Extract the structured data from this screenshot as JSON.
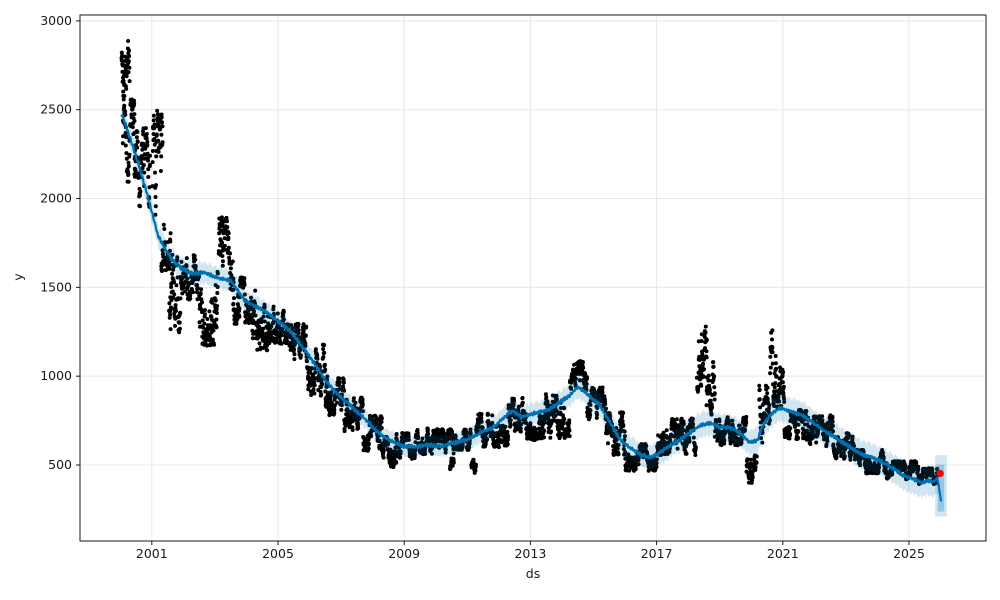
{
  "figure": {
    "background": "#ffffff"
  },
  "chart_data": {
    "type": "scatter",
    "title": "",
    "xlabel": "ds",
    "ylabel": "y",
    "x_tick_labels": [
      "2001",
      "2005",
      "2009",
      "2013",
      "2017",
      "2021",
      "2025"
    ],
    "x_ticks": [
      2001,
      2005,
      2009,
      2013,
      2017,
      2021,
      2025
    ],
    "y_tick_labels": [
      "500",
      "1000",
      "1500",
      "2000",
      "2500",
      "3000"
    ],
    "y_ticks": [
      500,
      1000,
      1500,
      2000,
      2500,
      3000
    ],
    "xlim": [
      1998.72,
      2027.44
    ],
    "ylim": [
      72,
      3033
    ],
    "grid": true,
    "legend": "none",
    "colors": {
      "history_points": "#000000",
      "forecast_line": "#0072B2",
      "uncertainty_band": "#0072B2",
      "band_opacity": 0.18,
      "highlight_point": "#ff0000",
      "grid_line": "#e8e8e8",
      "spine": "#1a1a1a",
      "tick_text": "#1a1a1a"
    },
    "series": {
      "forecast_trend_keypoints": [
        [
          2000.04,
          2480
        ],
        [
          2000.3,
          2350
        ],
        [
          2000.6,
          2180
        ],
        [
          2000.9,
          1995
        ],
        [
          2001.2,
          1790
        ],
        [
          2001.6,
          1665
        ],
        [
          2001.9,
          1612
        ],
        [
          2002.2,
          1578
        ],
        [
          2002.7,
          1582
        ],
        [
          2003.1,
          1552
        ],
        [
          2003.5,
          1540
        ],
        [
          2003.95,
          1425
        ],
        [
          2004.3,
          1392
        ],
        [
          2004.6,
          1365
        ],
        [
          2005.0,
          1308
        ],
        [
          2005.3,
          1270
        ],
        [
          2005.6,
          1205
        ],
        [
          2005.9,
          1135
        ],
        [
          2006.2,
          1060
        ],
        [
          2006.5,
          978
        ],
        [
          2006.8,
          915
        ],
        [
          2007.1,
          866
        ],
        [
          2007.45,
          810
        ],
        [
          2007.8,
          752
        ],
        [
          2008.1,
          696
        ],
        [
          2008.4,
          652
        ],
        [
          2008.7,
          624
        ],
        [
          2009.0,
          604
        ],
        [
          2009.35,
          602
        ],
        [
          2009.75,
          614
        ],
        [
          2010.15,
          604
        ],
        [
          2010.55,
          624
        ],
        [
          2011.0,
          642
        ],
        [
          2011.4,
          680
        ],
        [
          2011.85,
          714
        ],
        [
          2012.25,
          782
        ],
        [
          2012.45,
          808
        ],
        [
          2012.7,
          768
        ],
        [
          2013.0,
          786
        ],
        [
          2013.3,
          798
        ],
        [
          2013.6,
          815
        ],
        [
          2013.95,
          855
        ],
        [
          2014.25,
          893
        ],
        [
          2014.5,
          940
        ],
        [
          2014.9,
          884
        ],
        [
          2015.2,
          838
        ],
        [
          2015.5,
          745
        ],
        [
          2015.85,
          642
        ],
        [
          2016.15,
          597
        ],
        [
          2016.5,
          558
        ],
        [
          2016.8,
          542
        ],
        [
          2017.1,
          569
        ],
        [
          2017.45,
          614
        ],
        [
          2017.75,
          642
        ],
        [
          2018.05,
          681
        ],
        [
          2018.4,
          726
        ],
        [
          2018.7,
          736
        ],
        [
          2019.0,
          715
        ],
        [
          2019.35,
          708
        ],
        [
          2019.65,
          680
        ],
        [
          2019.95,
          625
        ],
        [
          2020.2,
          642
        ],
        [
          2020.4,
          736
        ],
        [
          2020.7,
          798
        ],
        [
          2020.9,
          820
        ],
        [
          2021.1,
          810
        ],
        [
          2021.6,
          782
        ],
        [
          2022.25,
          700
        ],
        [
          2022.9,
          628
        ],
        [
          2023.5,
          560
        ],
        [
          2023.8,
          545
        ],
        [
          2024.15,
          517
        ],
        [
          2024.5,
          480
        ],
        [
          2024.8,
          443
        ],
        [
          2025.1,
          424
        ],
        [
          2025.4,
          398
        ],
        [
          2025.6,
          412
        ],
        [
          2025.78,
          404
        ],
        [
          2025.9,
          428
        ],
        [
          2026.02,
          295
        ]
      ],
      "uncertainty_halfwidth_keypoints": [
        [
          2000.0,
          62
        ],
        [
          2004.0,
          58
        ],
        [
          2008.0,
          54
        ],
        [
          2012.0,
          58
        ],
        [
          2014.0,
          62
        ],
        [
          2016.0,
          64
        ],
        [
          2018.0,
          70
        ],
        [
          2020.0,
          72
        ],
        [
          2022.0,
          75
        ],
        [
          2024.0,
          78
        ],
        [
          2026.1,
          85
        ]
      ],
      "forecast_terminal_band": {
        "t0": 2025.83,
        "t1": 2026.2,
        "lo": 210,
        "hi": 556
      },
      "history_scatter_clusters": [
        [
          2000.04,
          2000.3,
          2550,
          2905
        ],
        [
          2000.08,
          2000.5,
          2080,
          2560
        ],
        [
          2000.45,
          2000.95,
          1950,
          2400
        ],
        [
          2001.02,
          2001.35,
          1900,
          2500
        ],
        [
          2001.3,
          2001.6,
          1580,
          1960
        ],
        [
          2001.55,
          2001.95,
          1245,
          1700
        ],
        [
          2001.95,
          2002.5,
          1430,
          1690
        ],
        [
          2002.5,
          2003.1,
          1170,
          1700
        ],
        [
          2003.12,
          2003.6,
          1480,
          1895
        ],
        [
          2003.58,
          2004.1,
          1290,
          1560
        ],
        [
          2004.1,
          2004.7,
          1145,
          1490
        ],
        [
          2004.7,
          2005.3,
          1180,
          1410
        ],
        [
          2005.3,
          2005.9,
          1040,
          1300
        ],
        [
          2005.9,
          2006.5,
          890,
          1180
        ],
        [
          2006.5,
          2007.1,
          780,
          1000
        ],
        [
          2007.1,
          2007.7,
          690,
          880
        ],
        [
          2007.7,
          2008.3,
          580,
          780
        ],
        [
          2008.3,
          2008.75,
          488,
          660
        ],
        [
          2008.75,
          2009.4,
          535,
          680
        ],
        [
          2009.4,
          2010.6,
          560,
          706
        ],
        [
          2010.45,
          2010.58,
          470,
          540
        ],
        [
          2010.6,
          2011.12,
          585,
          700
        ],
        [
          2011.13,
          2011.28,
          450,
          560
        ],
        [
          2011.28,
          2012.3,
          600,
          790
        ],
        [
          2012.3,
          2012.8,
          688,
          878
        ],
        [
          2012.8,
          2013.3,
          640,
          790
        ],
        [
          2013.3,
          2014.25,
          650,
          900
        ],
        [
          2014.25,
          2014.8,
          920,
          1085
        ],
        [
          2014.8,
          2015.4,
          755,
          940
        ],
        [
          2015.4,
          2016.0,
          555,
          800
        ],
        [
          2016.0,
          2017.05,
          468,
          622
        ],
        [
          2017.05,
          2018.25,
          555,
          762
        ],
        [
          2018.28,
          2018.6,
          880,
          1285
        ],
        [
          2018.58,
          2018.85,
          775,
          1120
        ],
        [
          2018.85,
          2019.85,
          608,
          772
        ],
        [
          2019.85,
          2020.18,
          395,
          572
        ],
        [
          2020.25,
          2020.6,
          600,
          950
        ],
        [
          2020.6,
          2021.05,
          818,
          1258
        ],
        [
          2021.05,
          2021.75,
          645,
          812
        ],
        [
          2021.75,
          2022.6,
          602,
          780
        ],
        [
          2022.6,
          2023.4,
          528,
          682
        ],
        [
          2023.4,
          2024.3,
          452,
          585
        ],
        [
          2024.3,
          2025.3,
          418,
          522
        ],
        [
          2025.3,
          2025.9,
          393,
          482
        ]
      ],
      "highlight_point": {
        "x": 2025.99,
        "y": 452
      }
    }
  }
}
